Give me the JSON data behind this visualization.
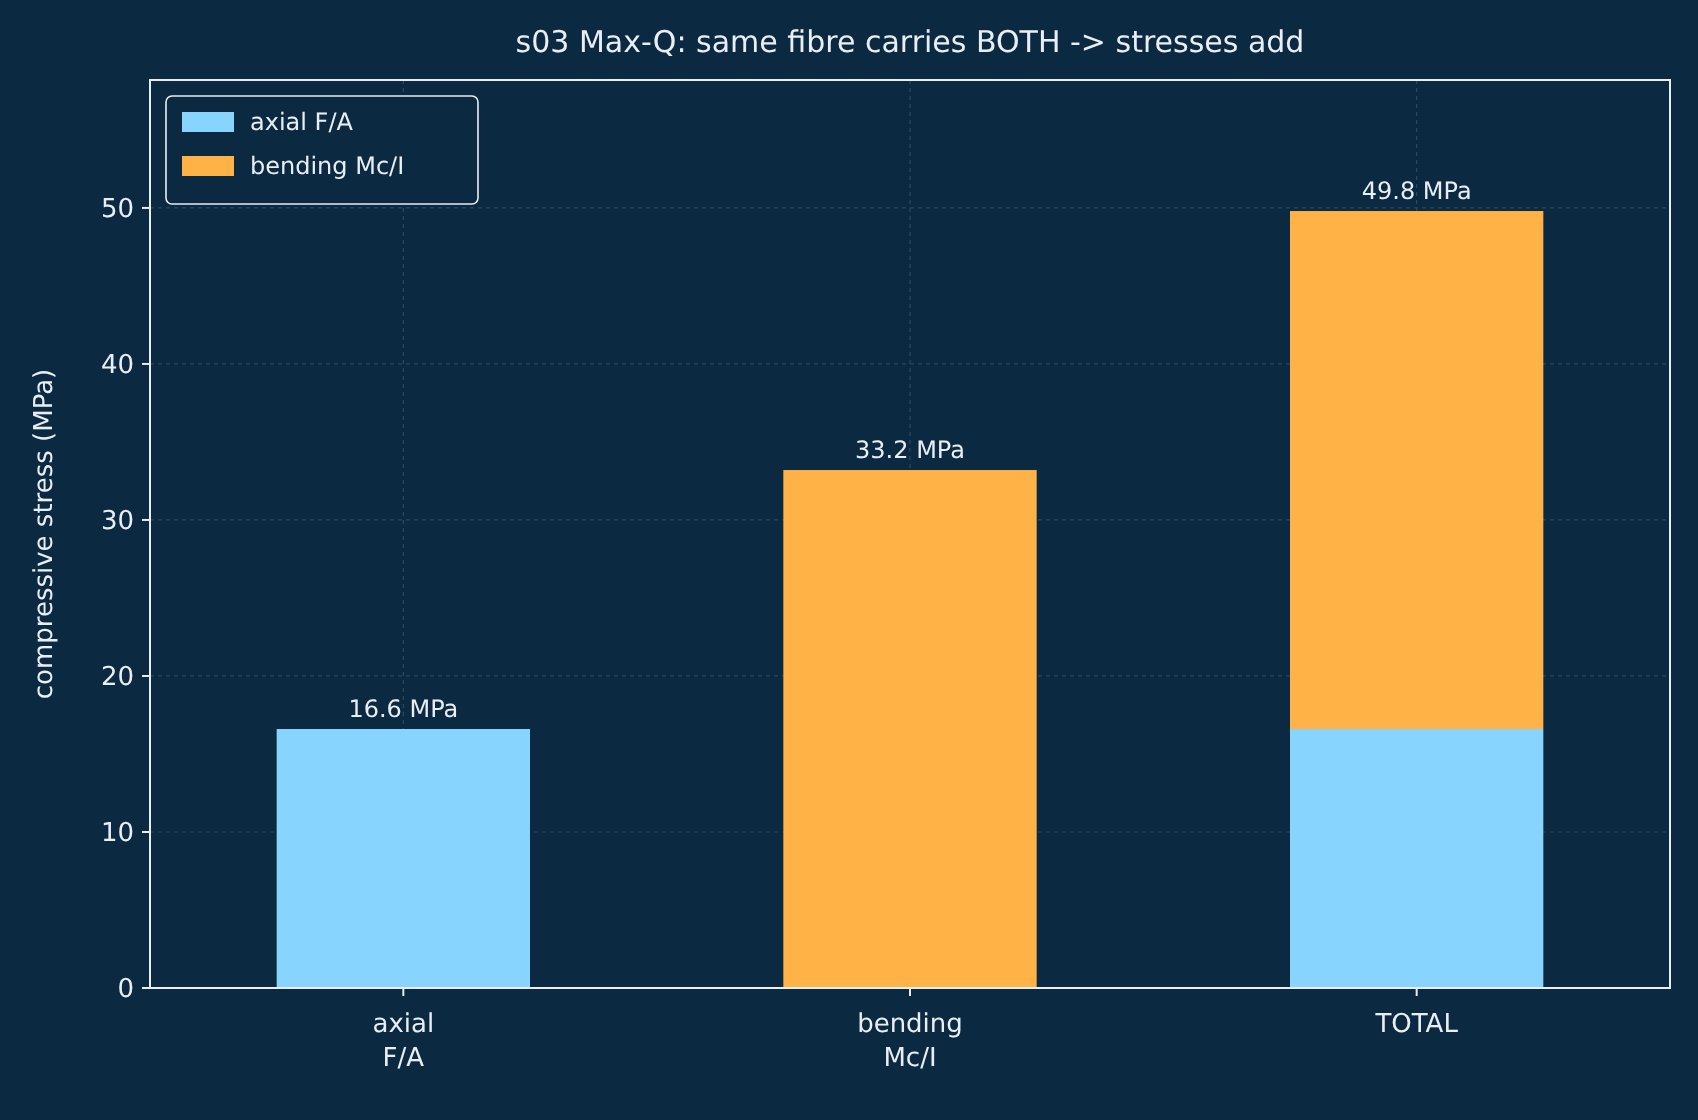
{
  "chart_data": {
    "type": "bar",
    "stacked": true,
    "title": "s03  Max-Q: same fibre carries BOTH -> stresses add",
    "ylabel": "compressive stress (MPa)",
    "categories": [
      "axial\nF/A",
      "bending\nMc/I",
      "TOTAL"
    ],
    "series": [
      {
        "name": "axial F/A",
        "color": "#87d4ff",
        "values": [
          16.6,
          null,
          16.6
        ]
      },
      {
        "name": "bending Mc/I",
        "color": "#ffb347",
        "values": [
          null,
          33.2,
          33.2
        ]
      }
    ],
    "totals": [
      "16.6 MPa",
      "33.2 MPa",
      "49.8 MPa"
    ],
    "ylim": [
      0,
      58.2
    ],
    "yticks": [
      0,
      10,
      20,
      30,
      40,
      50
    ],
    "grid": true,
    "legend": "top left"
  }
}
